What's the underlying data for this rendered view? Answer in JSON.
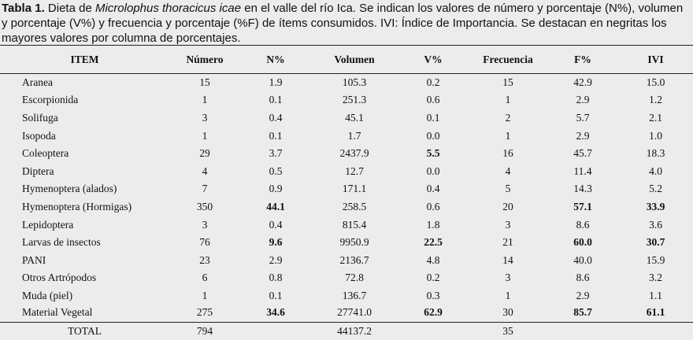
{
  "caption": {
    "label": "Tabla 1.",
    "pre": " Dieta de ",
    "species": "Microlophus thoracicus icae",
    "post": " en el valle del río Ica. Se indican los valores de número y porcentaje (N%), volumen y porcentaje (V%) y frecuencia y porcentaje (%F) de ítems consumidos. IVI: Índice de Importancia. Se destacan en negritas los mayores valores por columna de porcentajes."
  },
  "headers": [
    "ITEM",
    "Número",
    "N%",
    "Volumen",
    "V%",
    "Frecuencia",
    "F%",
    "IVI"
  ],
  "rows": [
    {
      "item": "Aranea",
      "numero": "15",
      "n_pct": "1.9",
      "volumen": "105.3",
      "v_pct": "0.2",
      "frecuencia": "15",
      "f_pct": "42.9",
      "ivi": "15.0"
    },
    {
      "item": "Escorpionida",
      "numero": "1",
      "n_pct": "0.1",
      "volumen": "251.3",
      "v_pct": "0.6",
      "frecuencia": "1",
      "f_pct": "2.9",
      "ivi": "1.2"
    },
    {
      "item": "Solifuga",
      "numero": "3",
      "n_pct": "0.4",
      "volumen": "45.1",
      "v_pct": "0.1",
      "frecuencia": "2",
      "f_pct": "5.7",
      "ivi": "2.1"
    },
    {
      "item": "Isopoda",
      "numero": "1",
      "n_pct": "0.1",
      "volumen": "1.7",
      "v_pct": "0.0",
      "frecuencia": "1",
      "f_pct": "2.9",
      "ivi": "1.0"
    },
    {
      "item": "Coleoptera",
      "numero": "29",
      "n_pct": "3.7",
      "volumen": "2437.9",
      "v_pct": "5.5",
      "frecuencia": "16",
      "f_pct": "45.7",
      "ivi": "18.3"
    },
    {
      "item": "Diptera",
      "numero": "4",
      "n_pct": "0.5",
      "volumen": "12.7",
      "v_pct": "0.0",
      "frecuencia": "4",
      "f_pct": "11.4",
      "ivi": "4.0"
    },
    {
      "item": "Hymenoptera (alados)",
      "numero": "7",
      "n_pct": "0.9",
      "volumen": "171.1",
      "v_pct": "0.4",
      "frecuencia": "5",
      "f_pct": "14.3",
      "ivi": "5.2"
    },
    {
      "item": "Hymenoptera (Hormigas)",
      "numero": "350",
      "n_pct": "44.1",
      "volumen": "258.5",
      "v_pct": "0.6",
      "frecuencia": "20",
      "f_pct": "57.1",
      "ivi": "33.9"
    },
    {
      "item": "Lepidoptera",
      "numero": "3",
      "n_pct": "0.4",
      "volumen": "815.4",
      "v_pct": "1.8",
      "frecuencia": "3",
      "f_pct": "8.6",
      "ivi": "3.6"
    },
    {
      "item": "Larvas de insectos",
      "numero": "76",
      "n_pct": "9.6",
      "volumen": "9950.9",
      "v_pct": "22.5",
      "frecuencia": "21",
      "f_pct": "60.0",
      "ivi": "30.7"
    },
    {
      "item": "PANI",
      "numero": "23",
      "n_pct": "2.9",
      "volumen": "2136.7",
      "v_pct": "4.8",
      "frecuencia": "14",
      "f_pct": "40.0",
      "ivi": "15.9"
    },
    {
      "item": "Otros Artrópodos",
      "numero": "6",
      "n_pct": "0.8",
      "volumen": "72.8",
      "v_pct": "0.2",
      "frecuencia": "3",
      "f_pct": "8.6",
      "ivi": "3.2"
    },
    {
      "item": "Muda (piel)",
      "numero": "1",
      "n_pct": "0.1",
      "volumen": "136.7",
      "v_pct": "0.3",
      "frecuencia": "1",
      "f_pct": "2.9",
      "ivi": "1.1"
    },
    {
      "item": "Material Vegetal",
      "numero": "275",
      "n_pct": "34.6",
      "volumen": "27741.0",
      "v_pct": "62.9",
      "frecuencia": "30",
      "f_pct": "85.7",
      "ivi": "61.1"
    }
  ],
  "bold_cells": {
    "n_pct": [
      7,
      9,
      13
    ],
    "v_pct": [
      4,
      9,
      13
    ],
    "f_pct": [
      7,
      9,
      13
    ],
    "ivi": [
      7,
      9,
      13
    ]
  },
  "total": {
    "item": "TOTAL",
    "numero": "794",
    "n_pct": "",
    "volumen": "44137.2",
    "v_pct": "",
    "frecuencia": "35",
    "f_pct": "",
    "ivi": ""
  }
}
